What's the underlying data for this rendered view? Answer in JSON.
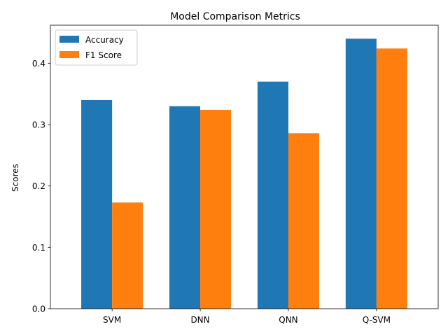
{
  "chart_data": {
    "type": "bar",
    "title": "Model Comparison Metrics",
    "xlabel": "",
    "ylabel": "Scores",
    "categories": [
      "SVM",
      "DNN",
      "QNN",
      "Q-SVM"
    ],
    "series": [
      {
        "name": "Accuracy",
        "color": "#1f77b4",
        "values": [
          0.34,
          0.33,
          0.37,
          0.44
        ]
      },
      {
        "name": "F1 Score",
        "color": "#ff7f0e",
        "values": [
          0.173,
          0.324,
          0.286,
          0.424
        ]
      }
    ],
    "ylim": [
      0,
      0.462
    ],
    "yticks": [
      0.0,
      0.1,
      0.2,
      0.3,
      0.4
    ],
    "ytick_labels": [
      "0.0",
      "0.1",
      "0.2",
      "0.3",
      "0.4"
    ],
    "legend_position": "top-left",
    "grid": false
  }
}
